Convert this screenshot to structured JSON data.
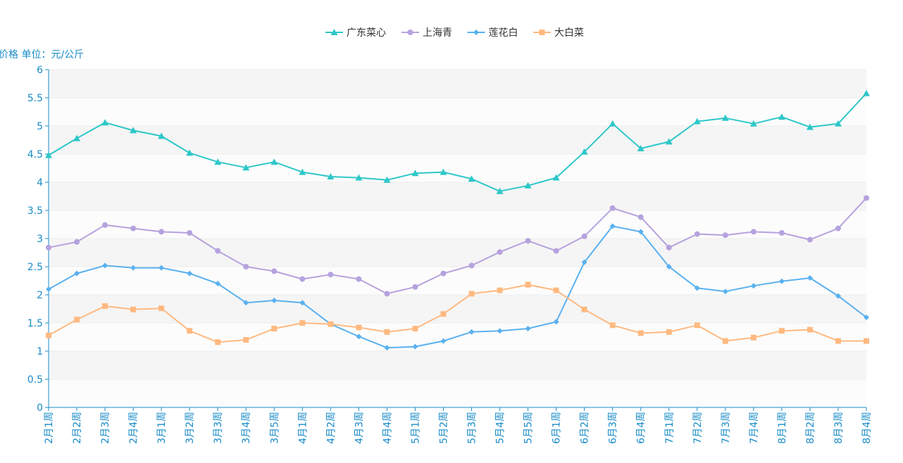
{
  "chart_data": {
    "type": "line",
    "ylabel": "价格 单位：元/公斤",
    "ylim": [
      0,
      6
    ],
    "yticks": [
      "0",
      "0.5",
      "1",
      "1.5",
      "2",
      "2.5",
      "3",
      "3.5",
      "4",
      "4.5",
      "5",
      "5.5",
      "6"
    ],
    "legend_position": "top-center",
    "grid": "horizontal bands",
    "categories": [
      "2月1周",
      "2月2周",
      "2月3周",
      "2月4周",
      "3月1周",
      "3月2周",
      "3月3周",
      "3月4周",
      "3月5周",
      "4月1周",
      "4月2周",
      "4月3周",
      "4月4周",
      "5月1周",
      "5月2周",
      "5月3周",
      "5月4周",
      "5月5周",
      "6月1周",
      "6月2周",
      "6月3周",
      "6月4周",
      "7月1周",
      "7月2周",
      "7月3周",
      "7月4周",
      "8月1周",
      "8月2周",
      "8月3周",
      "8月4周"
    ],
    "series": [
      {
        "name": "广东菜心",
        "color": "#2ec7c9",
        "marker": "triangle",
        "values": [
          4.48,
          4.78,
          5.06,
          4.92,
          4.82,
          4.52,
          4.36,
          4.26,
          4.36,
          4.18,
          4.1,
          4.08,
          4.04,
          4.16,
          4.18,
          4.06,
          3.84,
          3.94,
          4.08,
          4.54,
          5.04,
          4.6,
          4.72,
          5.08,
          5.14,
          5.04,
          5.16,
          4.98,
          5.04,
          5.58
        ]
      },
      {
        "name": "上海青",
        "color": "#b6a2de",
        "marker": "circle",
        "values": [
          2.84,
          2.94,
          3.24,
          3.18,
          3.12,
          3.1,
          2.78,
          2.5,
          2.42,
          2.28,
          2.36,
          2.28,
          2.02,
          2.14,
          2.38,
          2.52,
          2.76,
          2.96,
          2.78,
          3.04,
          3.54,
          3.38,
          2.84,
          3.08,
          3.06,
          3.12,
          3.1,
          2.98,
          3.18,
          3.72
        ]
      },
      {
        "name": "莲花白",
        "color": "#5ab1ef",
        "marker": "diamond",
        "values": [
          2.1,
          2.38,
          2.52,
          2.48,
          2.48,
          2.38,
          2.2,
          1.86,
          1.9,
          1.86,
          1.48,
          1.26,
          1.06,
          1.08,
          1.18,
          1.34,
          1.36,
          1.4,
          1.52,
          2.58,
          3.22,
          3.12,
          2.5,
          2.12,
          2.06,
          2.16,
          2.24,
          2.3,
          1.98,
          1.6
        ]
      },
      {
        "name": "大白菜",
        "color": "#ffb980",
        "marker": "square",
        "values": [
          1.28,
          1.56,
          1.8,
          1.74,
          1.76,
          1.36,
          1.16,
          1.2,
          1.4,
          1.5,
          1.48,
          1.42,
          1.34,
          1.4,
          1.66,
          2.02,
          2.08,
          2.18,
          2.08,
          1.74,
          1.46,
          1.32,
          1.34,
          1.46,
          1.18,
          1.24,
          1.36,
          1.38,
          1.18,
          1.18
        ]
      }
    ]
  }
}
